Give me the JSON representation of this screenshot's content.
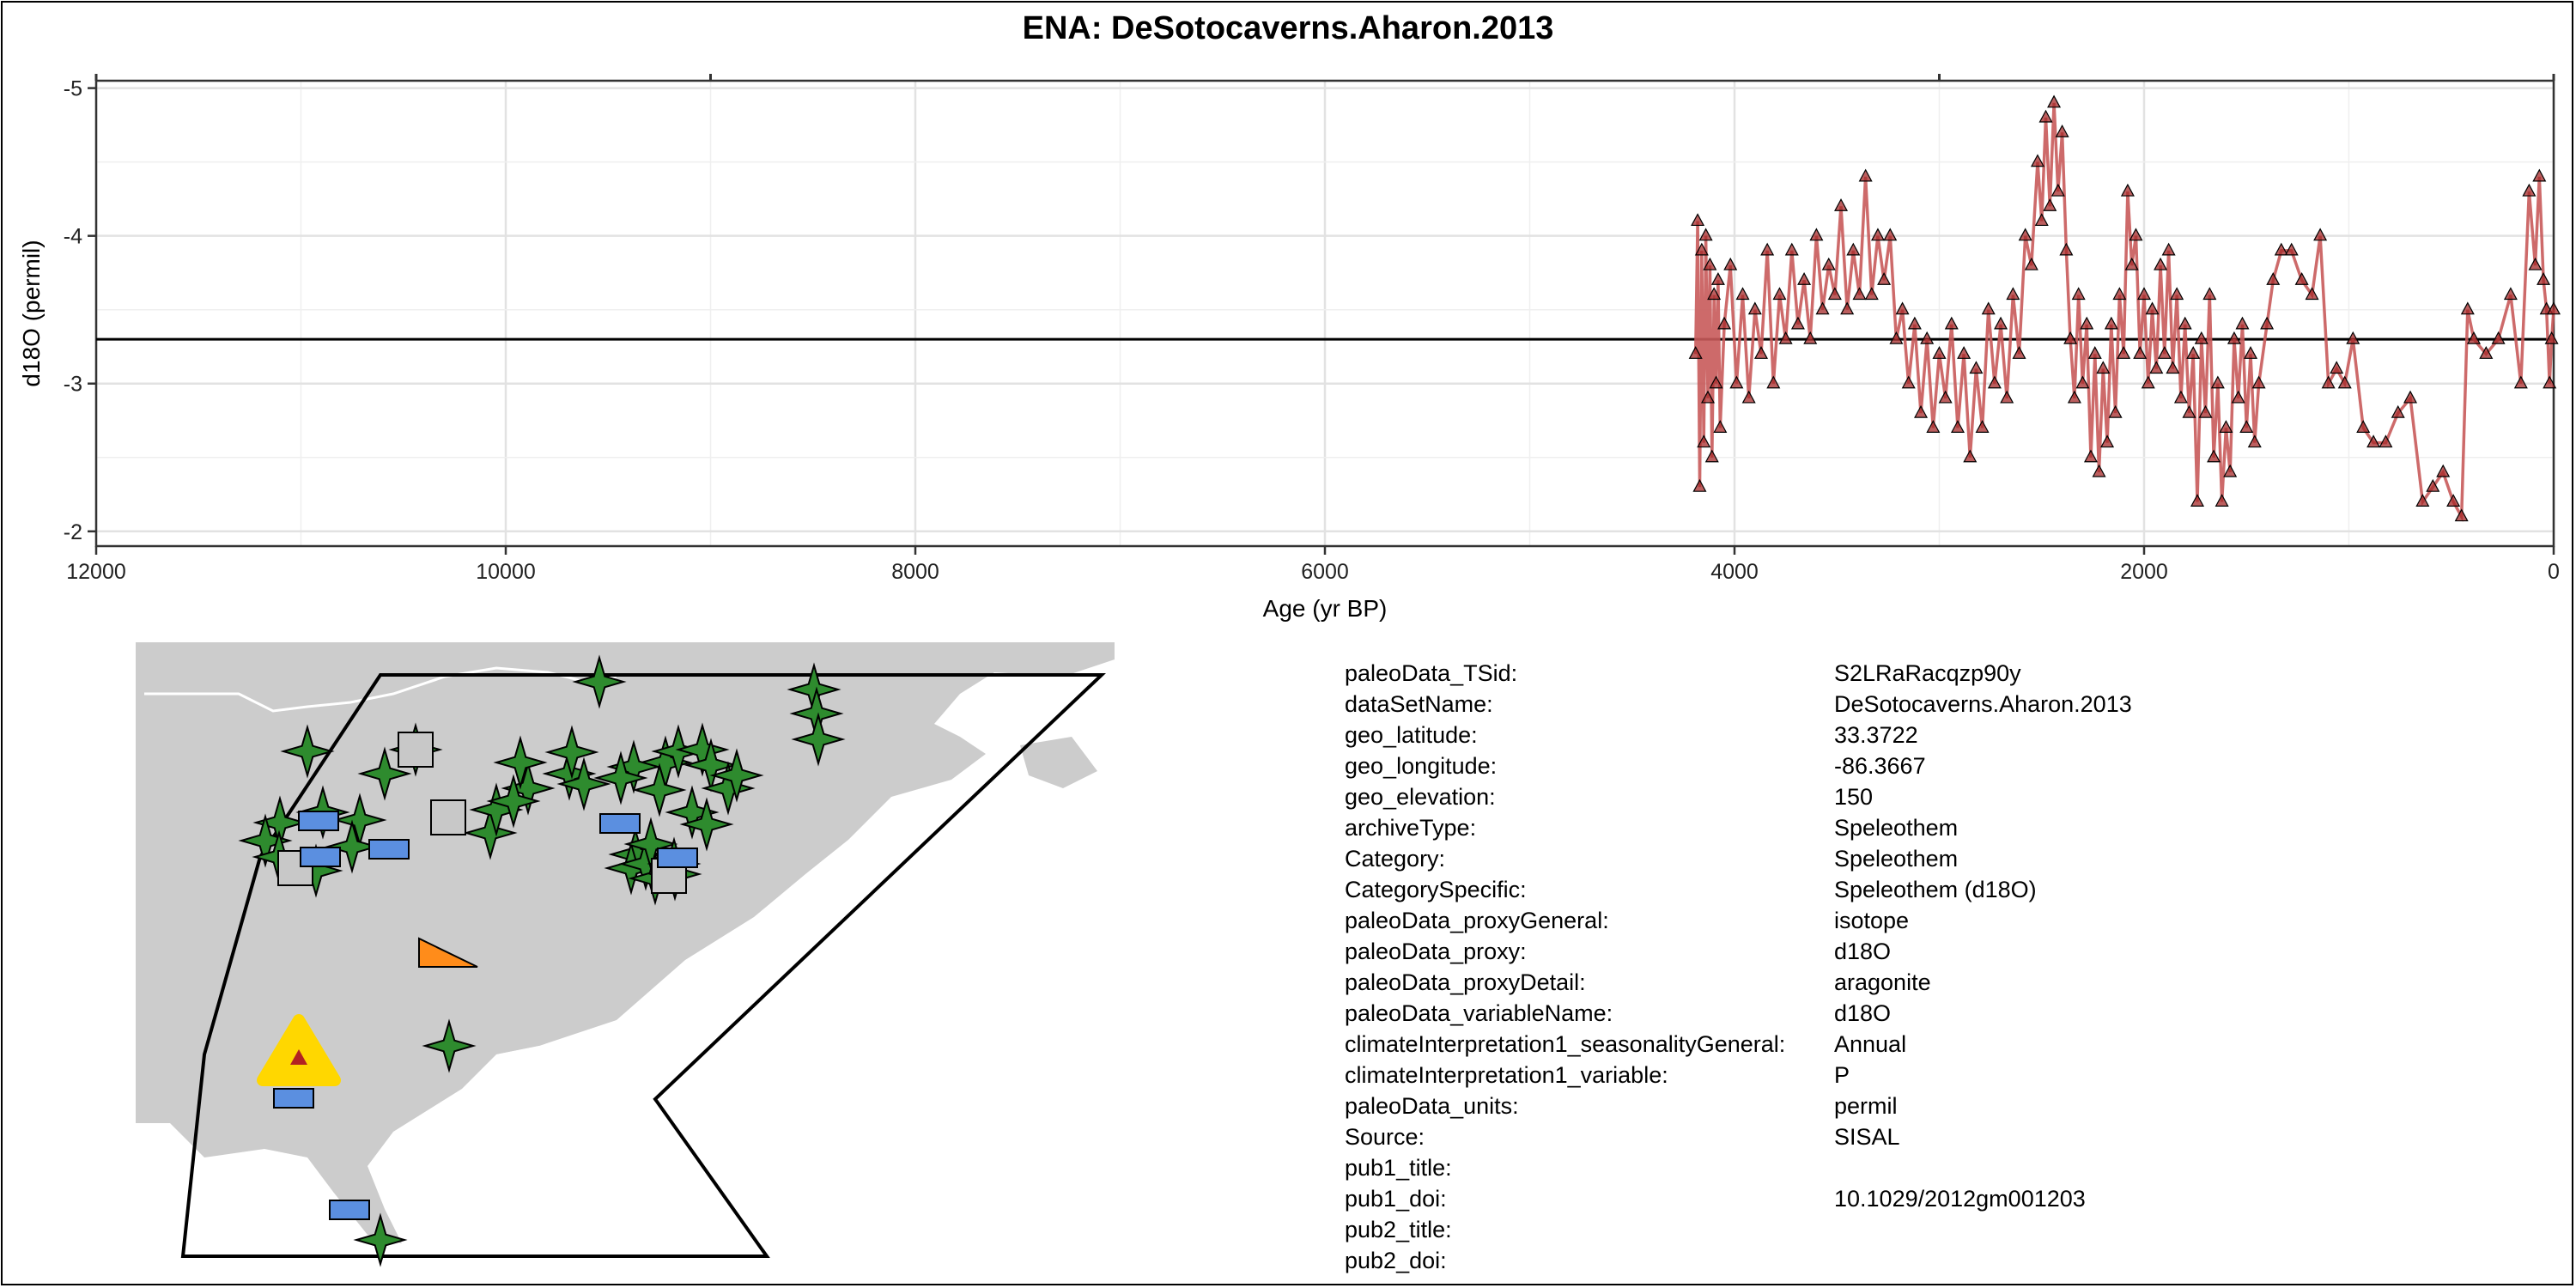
{
  "chart_data": {
    "type": "line",
    "title": "ENA: DeSotocaverns.Aharon.2013",
    "xlabel": "Age (yr BP)",
    "ylabel": "d18O (permil)",
    "xlim": [
      12000,
      0
    ],
    "ylim": [
      -1.9,
      -5.05
    ],
    "x_reversed": true,
    "y_reversed": true,
    "x_ticks": [
      12000,
      10000,
      8000,
      6000,
      4000,
      2000,
      0
    ],
    "x_tick_labels": [
      "12000",
      "10000",
      "8000",
      "6000",
      "4000",
      "2000",
      "0"
    ],
    "y_ticks": [
      -2,
      -3,
      -4,
      -5
    ],
    "y_tick_labels": [
      "-2",
      "-3",
      "-4",
      "-5"
    ],
    "grid": true,
    "reference_line_y": -3.3,
    "series_color": "#a52a2a",
    "line_color": "#c85a5a",
    "marker": "triangle",
    "series": [
      {
        "x": [
          4190,
          4180,
          4170,
          4160,
          4150,
          4140,
          4130,
          4120,
          4110,
          4100,
          4090,
          4080,
          4070,
          4050,
          4020,
          3990,
          3960,
          3930,
          3900,
          3870,
          3840,
          3810,
          3780,
          3750,
          3720,
          3690,
          3660,
          3630,
          3600,
          3570,
          3540,
          3510,
          3480,
          3450,
          3420,
          3390,
          3360,
          3330,
          3300,
          3270,
          3240,
          3210,
          3180,
          3150,
          3120,
          3090,
          3060,
          3030,
          3000,
          2970,
          2940,
          2910,
          2880,
          2850,
          2820,
          2790,
          2760,
          2730,
          2700,
          2670,
          2640,
          2610,
          2580,
          2550,
          2520,
          2500,
          2480,
          2460,
          2440,
          2420,
          2400,
          2380,
          2360,
          2340,
          2320,
          2300,
          2280,
          2260,
          2240,
          2220,
          2200,
          2180,
          2160,
          2140,
          2120,
          2100,
          2080,
          2060,
          2040,
          2020,
          2000,
          1980,
          1960,
          1940,
          1920,
          1900,
          1880,
          1860,
          1840,
          1820,
          1800,
          1780,
          1760,
          1740,
          1720,
          1700,
          1680,
          1660,
          1640,
          1620,
          1600,
          1580,
          1560,
          1540,
          1520,
          1500,
          1480,
          1460,
          1440,
          1400,
          1370,
          1330,
          1280,
          1230,
          1180,
          1140,
          1100,
          1060,
          1020,
          980,
          930,
          880,
          820,
          760,
          700,
          640,
          590,
          540,
          490,
          450,
          420,
          390,
          330,
          270,
          210,
          160,
          120,
          90,
          70,
          50,
          35,
          20,
          10,
          0
        ],
        "values": [
          -3.2,
          -4.1,
          -2.3,
          -3.9,
          -2.6,
          -4.0,
          -2.9,
          -3.8,
          -2.5,
          -3.6,
          -3.0,
          -3.7,
          -2.7,
          -3.4,
          -3.8,
          -3.0,
          -3.6,
          -2.9,
          -3.5,
          -3.2,
          -3.9,
          -3.0,
          -3.6,
          -3.3,
          -3.9,
          -3.4,
          -3.7,
          -3.3,
          -4.0,
          -3.5,
          -3.8,
          -3.6,
          -4.2,
          -3.5,
          -3.9,
          -3.6,
          -4.4,
          -3.6,
          -4.0,
          -3.7,
          -4.0,
          -3.3,
          -3.5,
          -3.0,
          -3.4,
          -2.8,
          -3.3,
          -2.7,
          -3.2,
          -2.9,
          -3.4,
          -2.7,
          -3.2,
          -2.5,
          -3.1,
          -2.7,
          -3.5,
          -3.0,
          -3.4,
          -2.9,
          -3.6,
          -3.2,
          -4.0,
          -3.8,
          -4.5,
          -4.1,
          -4.8,
          -4.2,
          -4.9,
          -4.3,
          -4.7,
          -3.9,
          -3.3,
          -2.9,
          -3.6,
          -3.0,
          -3.4,
          -2.5,
          -3.2,
          -2.4,
          -3.1,
          -2.6,
          -3.4,
          -2.8,
          -3.6,
          -3.2,
          -4.3,
          -3.8,
          -4.0,
          -3.2,
          -3.6,
          -3.0,
          -3.5,
          -3.1,
          -3.8,
          -3.2,
          -3.9,
          -3.1,
          -3.6,
          -2.9,
          -3.4,
          -2.8,
          -3.2,
          -2.2,
          -3.3,
          -2.8,
          -3.6,
          -2.5,
          -3.0,
          -2.2,
          -2.7,
          -2.4,
          -3.3,
          -2.9,
          -3.4,
          -2.7,
          -3.2,
          -2.6,
          -3.0,
          -3.4,
          -3.7,
          -3.9,
          -3.9,
          -3.7,
          -3.6,
          -4.0,
          -3.0,
          -3.1,
          -3.0,
          -3.3,
          -2.7,
          -2.6,
          -2.6,
          -2.8,
          -2.9,
          -2.2,
          -2.3,
          -2.4,
          -2.2,
          -2.1,
          -3.5,
          -3.3,
          -3.2,
          -3.3,
          -3.6,
          -3.0,
          -4.3,
          -3.8,
          -4.4,
          -3.7,
          -3.5,
          -3.0,
          -3.3,
          -3.5
        ]
      }
    ]
  },
  "map": {
    "legend_note": ""
  },
  "metadata": [
    {
      "key": "paleoData_TSid:",
      "value": "S2LRaRacqzp90y"
    },
    {
      "key": "dataSetName:",
      "value": "DeSotocaverns.Aharon.2013"
    },
    {
      "key": "geo_latitude:",
      "value": "33.3722"
    },
    {
      "key": "geo_longitude:",
      "value": "-86.3667"
    },
    {
      "key": "geo_elevation:",
      "value": "150"
    },
    {
      "key": "archiveType:",
      "value": "Speleothem"
    },
    {
      "key": "Category:",
      "value": "Speleothem"
    },
    {
      "key": "CategorySpecific:",
      "value": "Speleothem (d18O)"
    },
    {
      "key": "paleoData_proxyGeneral:",
      "value": "isotope"
    },
    {
      "key": "paleoData_proxy:",
      "value": "d18O"
    },
    {
      "key": "paleoData_proxyDetail:",
      "value": "aragonite"
    },
    {
      "key": "paleoData_variableName:",
      "value": "d18O"
    },
    {
      "key": "climateInterpretation1_seasonalityGeneral:",
      "value": "Annual"
    },
    {
      "key": "climateInterpretation1_variable:",
      "value": "P"
    },
    {
      "key": "paleoData_units:",
      "value": "permil"
    },
    {
      "key": "Source:",
      "value": "SISAL"
    },
    {
      "key": "pub1_title:",
      "value": ""
    },
    {
      "key": "pub1_doi:",
      "value": "10.1029/2012gm001203"
    },
    {
      "key": "pub2_title:",
      "value": ""
    },
    {
      "key": "pub2_doi:",
      "value": ""
    }
  ],
  "colors": {
    "land": "#cccccc",
    "star": "#2e8b2e",
    "rect": "#5b8fe0",
    "square": "#c8c8c8",
    "target_triangle": "#ffd700",
    "target_center": "#b22222",
    "orange_triangle": "#ff8c1a"
  }
}
